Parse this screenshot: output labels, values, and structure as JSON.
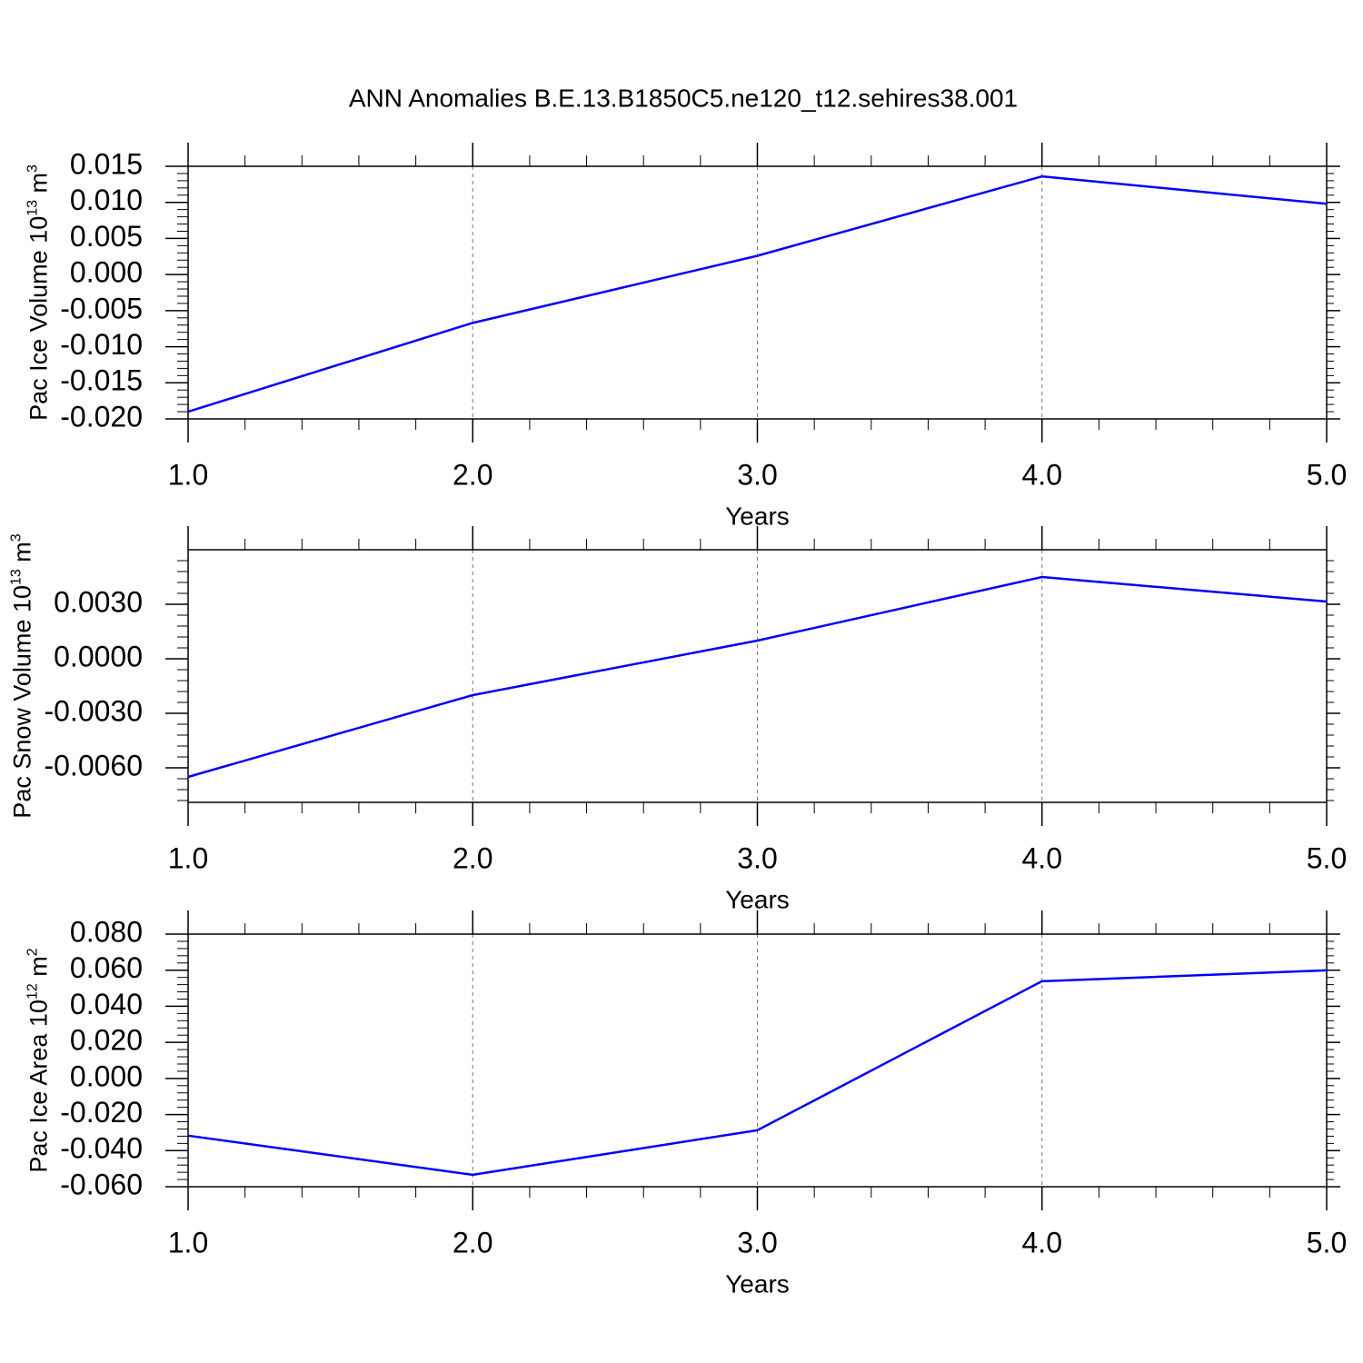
{
  "chart_data": [
    {
      "type": "line",
      "title": "ANN Anomalies B.E.13.B1850C5.ne120_t12.sehires38.001",
      "x": [
        1,
        2,
        3,
        4,
        5
      ],
      "xlabel": "Years",
      "ylabel": [
        "Pac Ice Volume 10",
        "13",
        " m",
        "3"
      ],
      "series": [
        {
          "color": "#0000ff",
          "values": [
            -0.019,
            -0.0067,
            0.0026,
            0.0136,
            0.0098
          ]
        }
      ],
      "xlim": [
        1,
        5
      ],
      "xticks": [
        {
          "value": 1,
          "label": "1.0"
        },
        {
          "value": 2,
          "label": "2.0"
        },
        {
          "value": 3,
          "label": "3.0"
        },
        {
          "value": 4,
          "label": "4.0"
        },
        {
          "value": 5,
          "label": "5.0"
        }
      ],
      "ylim": [
        -0.02,
        0.015
      ],
      "yticks": [
        {
          "value": -0.02,
          "label": "-0.020"
        },
        -0.015,
        {
          "value": -0.01,
          "label": "-0.010"
        },
        -0.005,
        {
          "value": 0,
          "label": "0.000"
        },
        0.005,
        {
          "value": 0.01,
          "label": "0.010"
        },
        0.015
      ],
      "grid": true
    },
    {
      "type": "line",
      "x": [
        1,
        2,
        3,
        4,
        5
      ],
      "xlabel": "Years",
      "ylabel": [
        "Pac Snow Volume 10",
        "13",
        " m",
        "3"
      ],
      "series": [
        {
          "color": "#0000ff",
          "values": [
            -0.0065,
            -0.002,
            0.001,
            0.0045,
            0.00315
          ]
        }
      ],
      "xlim": [
        1,
        5
      ],
      "xticks": [
        {
          "value": 1,
          "label": "1.0"
        },
        {
          "value": 2,
          "label": "2.0"
        },
        {
          "value": 3,
          "label": "3.0"
        },
        {
          "value": 4,
          "label": "4.0"
        },
        {
          "value": 5,
          "label": "5.0"
        }
      ],
      "ylim": [
        -0.0079,
        0.006
      ],
      "yticks": [
        {
          "value": -0.006,
          "label": "-0.0060"
        },
        {
          "value": -0.003,
          "label": "-0.0030"
        },
        {
          "value": 0,
          "label": "0.0000"
        },
        {
          "value": 0.003,
          "label": "0.0030"
        }
      ],
      "grid": true
    },
    {
      "type": "line",
      "x": [
        1,
        2,
        3,
        4,
        5
      ],
      "xlabel": "Years",
      "ylabel": [
        "Pac Ice Area 10",
        "12",
        " m",
        "2"
      ],
      "series": [
        {
          "color": "#0000ff",
          "values": [
            -0.0317,
            -0.0534,
            -0.0287,
            0.0539,
            0.0599
          ]
        }
      ],
      "xlim": [
        1,
        5
      ],
      "xticks": [
        {
          "value": 1,
          "label": "1.0"
        },
        {
          "value": 2,
          "label": "2.0"
        },
        {
          "value": 3,
          "label": "3.0"
        },
        {
          "value": 4,
          "label": "4.0"
        },
        {
          "value": 5,
          "label": "5.0"
        }
      ],
      "ylim": [
        -0.06,
        0.08
      ],
      "yticks": [
        {
          "value": -0.06,
          "label": "-0.060"
        },
        {
          "value": -0.04,
          "label": "-0.040"
        },
        {
          "value": -0.02,
          "label": "-0.020"
        },
        {
          "value": 0,
          "label": "0.000"
        },
        {
          "value": 0.02,
          "label": "0.020"
        },
        {
          "value": 0.04,
          "label": "0.040"
        },
        {
          "value": 0.06,
          "label": "0.060"
        },
        {
          "value": 0.08,
          "label": "0.080"
        }
      ],
      "grid": true
    }
  ]
}
